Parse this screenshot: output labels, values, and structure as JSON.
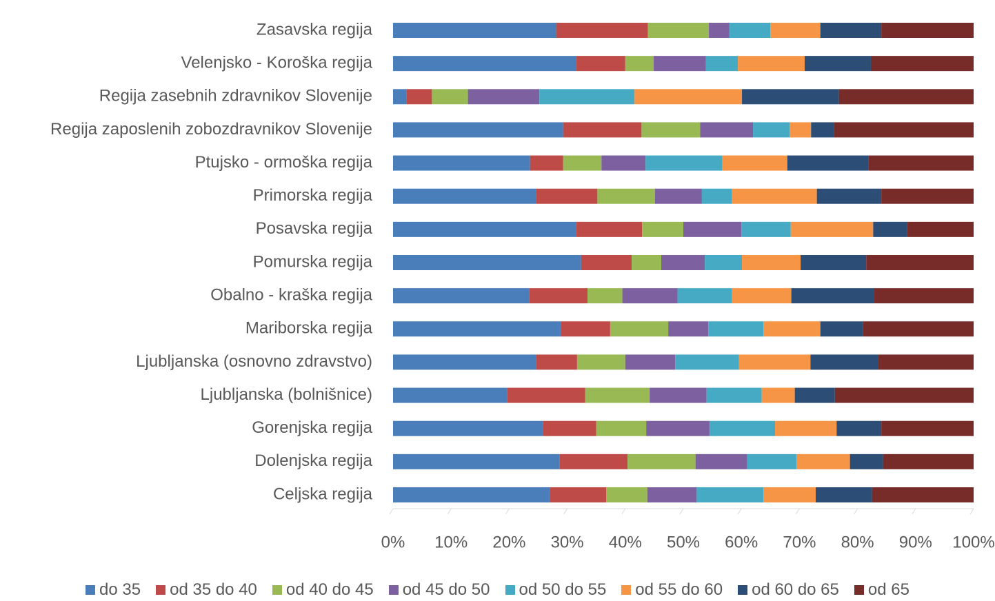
{
  "chart_data": {
    "type": "stacked_percent_barh",
    "categories": [
      "Celjska regija",
      "Dolenjska regija",
      "Gorenjska regija",
      "Ljubljanska (bolnišnice)",
      "Ljubljanska (osnovno zdravstvo)",
      "Mariborska regija",
      "Obalno - kraška regija",
      "Pomurska regija",
      "Posavska regija",
      "Primorska regija",
      "Ptujsko - ormoška regija",
      "Regija zaposlenih zobozdravnikov Slovenije",
      "Regija zasebnih zdravnikov Slovenije",
      "Velenjsko - Koroška regija",
      "Zasavska regija"
    ],
    "series": [
      {
        "name": "do 35",
        "color": "#4a7ebb",
        "values": [
          27.0,
          28.7,
          25.8,
          19.7,
          24.6,
          28.9,
          23.5,
          32.4,
          31.5,
          24.6,
          23.6,
          29.3,
          2.3,
          31.6,
          28.1
        ]
      },
      {
        "name": "od 35 do 40",
        "color": "#be4b48",
        "values": [
          9.7,
          11.7,
          9.2,
          13.4,
          7.1,
          8.5,
          10.0,
          8.7,
          11.4,
          10.6,
          5.7,
          13.5,
          4.4,
          8.4,
          15.8
        ]
      },
      {
        "name": "od 40 do 45",
        "color": "#98b954",
        "values": [
          7.1,
          11.7,
          8.6,
          11.1,
          8.3,
          10.0,
          6.0,
          5.1,
          7.1,
          9.9,
          6.6,
          10.1,
          6.2,
          4.9,
          10.5
        ]
      },
      {
        "name": "od 45 do 50",
        "color": "#7d60a0",
        "values": [
          8.5,
          8.9,
          10.9,
          9.8,
          8.6,
          6.9,
          9.5,
          7.5,
          10.0,
          8.1,
          7.6,
          9.1,
          12.3,
          9.0,
          3.5
        ]
      },
      {
        "name": "od 50 do 55",
        "color": "#46aac5",
        "values": [
          11.5,
          8.5,
          11.3,
          9.5,
          11.0,
          9.5,
          9.4,
          6.4,
          8.5,
          5.2,
          13.2,
          6.3,
          16.4,
          5.5,
          7.1
        ]
      },
      {
        "name": "od 55 do 60",
        "color": "#f69546",
        "values": [
          9.0,
          9.2,
          10.6,
          5.7,
          12.3,
          9.8,
          10.2,
          10.1,
          14.2,
          14.6,
          11.2,
          3.7,
          18.5,
          11.5,
          8.6
        ]
      },
      {
        "name": "od 60 do 65",
        "color": "#2c4d75",
        "values": [
          9.7,
          5.7,
          7.7,
          6.9,
          11.6,
          7.3,
          14.3,
          11.3,
          5.8,
          11.1,
          14.0,
          4.0,
          16.7,
          11.4,
          10.5
        ]
      },
      {
        "name": "od 65",
        "color": "#772c2a",
        "values": [
          17.5,
          15.6,
          15.9,
          23.9,
          16.5,
          19.1,
          17.1,
          18.5,
          11.5,
          15.9,
          18.1,
          24.0,
          23.2,
          17.7,
          15.9
        ]
      }
    ],
    "xlim": [
      0,
      100
    ],
    "xticks": [
      {
        "value": 0,
        "label": "0%"
      },
      {
        "value": 10,
        "label": "10%"
      },
      {
        "value": 20,
        "label": "20%"
      },
      {
        "value": 30,
        "label": "30%"
      },
      {
        "value": 40,
        "label": "40%"
      },
      {
        "value": 50,
        "label": "50%"
      },
      {
        "value": 60,
        "label": "60%"
      },
      {
        "value": 70,
        "label": "70%"
      },
      {
        "value": 80,
        "label": "80%"
      },
      {
        "value": 90,
        "label": "90%"
      },
      {
        "value": 100,
        "label": "100%"
      }
    ],
    "legend": "bottom"
  }
}
